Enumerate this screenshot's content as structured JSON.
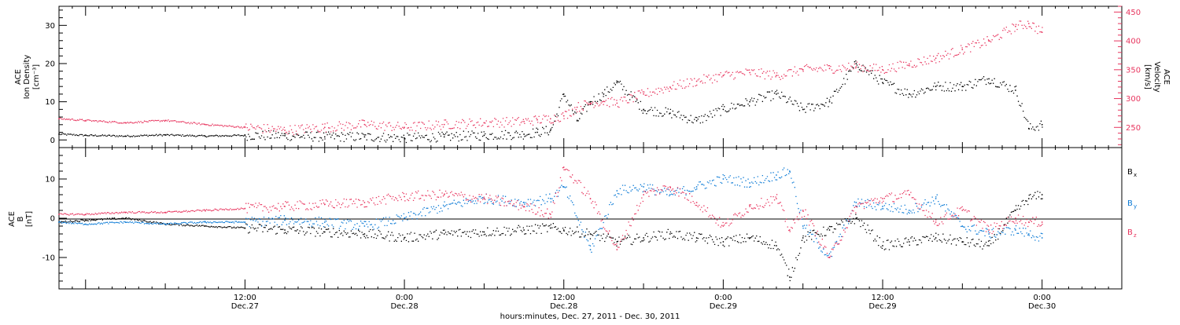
{
  "colors": {
    "black": "#000000",
    "pink": "#e8365f",
    "blue": "#0a7ad6"
  },
  "footer": {
    "xaxis_caption": "hours:minutes, Dec. 27, 2011 - Dec. 30, 2011"
  },
  "top_panel": {
    "left_ylabel": [
      "ACE",
      "Ion Density",
      "[cm⁻³]"
    ],
    "right_ylabel": [
      "ACE",
      "Velocity",
      "[km/s]"
    ],
    "left_ticks": [
      "0",
      "10",
      "20",
      "30"
    ],
    "right_ticks": [
      "250",
      "300",
      "350",
      "400",
      "450"
    ]
  },
  "bottom_panel": {
    "ylabel": [
      "ACE",
      "B",
      "[nT]"
    ],
    "ticks": [
      "-10",
      "0",
      "10"
    ],
    "legend": [
      {
        "key": "bx",
        "label": "B",
        "sub": "x",
        "color": "#000000"
      },
      {
        "key": "by",
        "label": "B",
        "sub": "y",
        "color": "#0a7ad6"
      },
      {
        "key": "bz",
        "label": "B",
        "sub": "z",
        "color": "#e8365f"
      }
    ]
  },
  "x_ticks": [
    {
      "time": "12:00",
      "date": "Dec.27"
    },
    {
      "time": "0:00",
      "date": "Dec.28"
    },
    {
      "time": "12:00",
      "date": "Dec.28"
    },
    {
      "time": "0:00",
      "date": "Dec.29"
    },
    {
      "time": "12:00",
      "date": "Dec.29"
    },
    {
      "time": "0:00",
      "date": "Dec.30"
    }
  ],
  "chart_data": [
    {
      "type": "scatter",
      "xlabel": "hours:minutes, Dec. 27, 2011 - Dec. 30, 2011",
      "xlim": [
        "Dec 26 22:00",
        "Dec 30 06:00"
      ],
      "ylabel": "ACE Ion Density [cm⁻³]",
      "ylim": [
        -2,
        35
      ],
      "y2label": "ACE Velocity [km/s]",
      "y2lim": [
        215,
        460
      ],
      "series": [
        {
          "name": "Ion Density",
          "axis": "left",
          "color": "#000000",
          "x": [
            "Dec 26 22:00",
            "Dec 27 00:00",
            "Dec 27 03:00",
            "Dec 27 06:00",
            "Dec 27 09:00",
            "Dec 27 12:00",
            "Dec 27 15:00",
            "Dec 27 18:00",
            "Dec 27 21:00",
            "Dec 28 00:00",
            "Dec 28 03:00",
            "Dec 28 06:00",
            "Dec 28 09:00",
            "Dec 28 10:00",
            "Dec 28 11:00",
            "Dec 28 12:00",
            "Dec 28 13:00",
            "Dec 28 14:00",
            "Dec 28 15:00",
            "Dec 28 16:00",
            "Dec 28 18:00",
            "Dec 28 20:00",
            "Dec 28 22:00",
            "Dec 29 00:00",
            "Dec 29 02:00",
            "Dec 29 04:00",
            "Dec 29 06:00",
            "Dec 29 08:00",
            "Dec 29 10:00",
            "Dec 29 12:00",
            "Dec 29 14:00",
            "Dec 29 16:00",
            "Dec 29 18:00",
            "Dec 29 20:00",
            "Dec 29 22:00",
            "Dec 29 23:00",
            "Dec 30 00:00"
          ],
          "values": [
            1.5,
            1.2,
            1.0,
            1.3,
            1.0,
            1.2,
            1.1,
            0.8,
            0.8,
            0.5,
            0.8,
            1.2,
            1.5,
            2.0,
            2.5,
            12,
            5,
            10,
            12,
            15,
            8,
            7,
            5,
            8,
            10,
            12,
            8,
            10,
            20,
            15,
            12,
            14,
            14,
            16,
            13,
            3,
            4
          ]
        },
        {
          "name": "Velocity",
          "axis": "right",
          "color": "#e8365f",
          "x": [
            "Dec 26 22:00",
            "Dec 27 00:00",
            "Dec 27 03:00",
            "Dec 27 06:00",
            "Dec 27 09:00",
            "Dec 27 12:00",
            "Dec 27 15:00",
            "Dec 27 18:00",
            "Dec 27 21:00",
            "Dec 28 00:00",
            "Dec 28 03:00",
            "Dec 28 06:00",
            "Dec 28 09:00",
            "Dec 28 10:00",
            "Dec 28 11:00",
            "Dec 28 12:00",
            "Dec 28 13:00",
            "Dec 28 14:00",
            "Dec 28 15:00",
            "Dec 28 16:00",
            "Dec 28 18:00",
            "Dec 28 20:00",
            "Dec 28 22:00",
            "Dec 29 00:00",
            "Dec 29 02:00",
            "Dec 29 04:00",
            "Dec 29 06:00",
            "Dec 29 08:00",
            "Dec 29 10:00",
            "Dec 29 12:00",
            "Dec 29 14:00",
            "Dec 29 16:00",
            "Dec 29 18:00",
            "Dec 29 20:00",
            "Dec 29 22:00",
            "Dec 29 23:00",
            "Dec 30 00:00"
          ],
          "values": [
            265,
            262,
            258,
            262,
            255,
            250,
            245,
            250,
            255,
            250,
            255,
            258,
            260,
            263,
            265,
            270,
            285,
            292,
            295,
            292,
            308,
            320,
            330,
            340,
            345,
            340,
            350,
            352,
            355,
            350,
            360,
            370,
            385,
            400,
            425,
            430,
            415
          ]
        }
      ]
    },
    {
      "type": "scatter",
      "ylabel": "ACE B [nT]",
      "ylim": [
        -18,
        18
      ],
      "series": [
        {
          "name": "Bx",
          "color": "#000000",
          "x": [
            "Dec 26 22:00",
            "Dec 27 00:00",
            "Dec 27 03:00",
            "Dec 27 06:00",
            "Dec 27 09:00",
            "Dec 27 12:00",
            "Dec 27 15:00",
            "Dec 27 18:00",
            "Dec 27 21:00",
            "Dec 28 00:00",
            "Dec 28 03:00",
            "Dec 28 06:00",
            "Dec 28 09:00",
            "Dec 28 11:00",
            "Dec 28 12:00",
            "Dec 28 14:00",
            "Dec 28 16:00",
            "Dec 28 18:00",
            "Dec 28 20:00",
            "Dec 28 22:00",
            "Dec 29 00:00",
            "Dec 29 02:00",
            "Dec 29 04:00",
            "Dec 29 05:00",
            "Dec 29 06:00",
            "Dec 29 08:00",
            "Dec 29 10:00",
            "Dec 29 12:00",
            "Dec 29 14:00",
            "Dec 29 16:00",
            "Dec 29 18:00",
            "Dec 29 20:00",
            "Dec 29 22:00",
            "Dec 29 23:00",
            "Dec 30 00:00"
          ],
          "values": [
            -1,
            -0.5,
            0,
            -1.5,
            -2,
            -2.5,
            -3,
            -3.5,
            -4,
            -5,
            -4,
            -3.5,
            -3,
            -2.5,
            -3,
            -4,
            -6,
            -5,
            -4,
            -5,
            -6,
            -5,
            -7,
            -15,
            -5,
            -3,
            0,
            -7,
            -6,
            -5,
            -6,
            -7,
            2,
            5,
            6
          ]
        },
        {
          "name": "By",
          "color": "#0a7ad6",
          "x": [
            "Dec 26 22:00",
            "Dec 27 00:00",
            "Dec 27 03:00",
            "Dec 27 06:00",
            "Dec 27 09:00",
            "Dec 27 12:00",
            "Dec 27 15:00",
            "Dec 27 18:00",
            "Dec 27 21:00",
            "Dec 28 00:00",
            "Dec 28 03:00",
            "Dec 28 06:00",
            "Dec 28 09:00",
            "Dec 28 11:00",
            "Dec 28 12:00",
            "Dec 28 14:00",
            "Dec 28 16:00",
            "Dec 28 18:00",
            "Dec 28 20:00",
            "Dec 28 22:00",
            "Dec 29 00:00",
            "Dec 29 02:00",
            "Dec 29 04:00",
            "Dec 29 05:00",
            "Dec 29 06:00",
            "Dec 29 08:00",
            "Dec 29 10:00",
            "Dec 29 12:00",
            "Dec 29 14:00",
            "Dec 29 16:00",
            "Dec 29 18:00",
            "Dec 29 20:00",
            "Dec 29 22:00",
            "Dec 29 23:00",
            "Dec 30 00:00"
          ],
          "values": [
            -1,
            -1.5,
            -1,
            -1.5,
            -1,
            -1,
            -0.5,
            -1,
            -2,
            0,
            3,
            5,
            4,
            5,
            8,
            -8,
            7,
            8,
            6,
            8,
            10,
            9,
            11,
            12,
            -2,
            -10,
            4,
            3,
            2,
            5,
            -2,
            -4,
            -3,
            -4,
            -5
          ]
        },
        {
          "name": "Bz",
          "color": "#e8365f",
          "x": [
            "Dec 26 22:00",
            "Dec 27 00:00",
            "Dec 27 03:00",
            "Dec 27 06:00",
            "Dec 27 09:00",
            "Dec 27 12:00",
            "Dec 27 15:00",
            "Dec 27 18:00",
            "Dec 27 21:00",
            "Dec 28 00:00",
            "Dec 28 03:00",
            "Dec 28 06:00",
            "Dec 28 09:00",
            "Dec 28 11:00",
            "Dec 28 12:00",
            "Dec 28 14:00",
            "Dec 28 16:00",
            "Dec 28 18:00",
            "Dec 28 20:00",
            "Dec 28 22:00",
            "Dec 29 00:00",
            "Dec 29 02:00",
            "Dec 29 04:00",
            "Dec 29 05:00",
            "Dec 29 06:00",
            "Dec 29 08:00",
            "Dec 29 10:00",
            "Dec 29 12:00",
            "Dec 29 14:00",
            "Dec 29 16:00",
            "Dec 29 18:00",
            "Dec 29 20:00",
            "Dec 29 22:00",
            "Dec 29 23:00",
            "Dec 30 00:00"
          ],
          "values": [
            1,
            1,
            1.5,
            1.5,
            2,
            2.5,
            3,
            3.5,
            4,
            5.5,
            6,
            5,
            3,
            1,
            13,
            5,
            -8,
            6,
            8,
            4,
            -2,
            3,
            5,
            -3,
            2,
            -10,
            3,
            5,
            6,
            -1,
            2,
            -3,
            0,
            -1,
            -1
          ]
        }
      ]
    }
  ]
}
